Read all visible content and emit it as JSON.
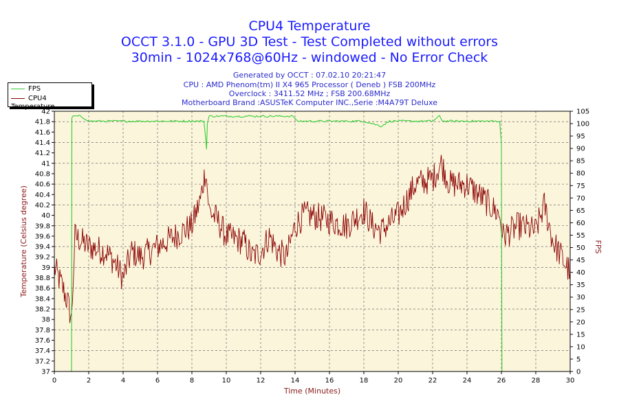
{
  "title": "CPU4 Temperature",
  "subtitle1": "OCCT 3.1.0 - GPU 3D Test - Test Completed without errors",
  "subtitle2": "30min - 1024x768@60Hz - windowed - No Error Check",
  "info": [
    "Generated by OCCT : 07.02.10 20:21:47",
    "CPU : AMD Phenom(tm) II X4 965 Processor ( Deneb ) FSB 200MHz",
    "Overclock : 3411.52 MHz ; FSB 200.68MHz",
    "Motherboard Brand :ASUSTeK Computer INC.,Serie :M4A79T Deluxe"
  ],
  "legend": [
    "FPS",
    "CPU4 Temperature"
  ],
  "colors": {
    "fps": "#33cc33",
    "temperature": "#8b0000",
    "plot_bg": "#fbf5dc",
    "title": "#1a1aff",
    "axis_label": "#8b1a1a"
  },
  "chart_data": {
    "type": "line",
    "xlabel": "Time (Minutes)",
    "ylabel": "Temperature (Celsius degree)",
    "y2label": "FPS",
    "xlim": [
      0,
      30
    ],
    "ylim": [
      37,
      42
    ],
    "y2lim": [
      0,
      105
    ],
    "grid": true,
    "legend_position": "top-left",
    "xticks": [
      "0",
      "2",
      "4",
      "6",
      "8",
      "10",
      "12",
      "14",
      "16",
      "18",
      "20",
      "22",
      "24",
      "26",
      "28",
      "30"
    ],
    "yticks": [
      "37",
      "37.2",
      "37.4",
      "37.6",
      "37.8",
      "38",
      "38.2",
      "38.4",
      "38.6",
      "38.8",
      "39",
      "39.2",
      "39.4",
      "39.6",
      "39.8",
      "40",
      "40.2",
      "40.4",
      "40.6",
      "40.8",
      "41",
      "41.2",
      "41.4",
      "41.6",
      "41.8",
      "42"
    ],
    "y2ticks": [
      "0",
      "5",
      "10",
      "15",
      "20",
      "25",
      "30",
      "35",
      "40",
      "45",
      "50",
      "55",
      "60",
      "65",
      "70",
      "75",
      "80",
      "85",
      "90",
      "95",
      "100",
      "105"
    ],
    "series": [
      {
        "name": "FPS",
        "axis": "right",
        "x": [
          0,
          1.0,
          1.02,
          1.1,
          1.5,
          1.8,
          2.0,
          4,
          6,
          8,
          8.7,
          8.8,
          8.85,
          8.9,
          9.0,
          10,
          12,
          13.9,
          14.1,
          16,
          18,
          18.5,
          19.0,
          19.5,
          20,
          22,
          22.4,
          22.6,
          24,
          25.9,
          26.0,
          26.03,
          30
        ],
        "values": [
          0,
          0,
          102,
          103,
          103,
          102,
          101,
          101,
          101,
          101,
          101,
          94,
          90,
          100,
          103,
          103,
          103,
          103,
          101,
          101,
          101,
          100,
          99,
          101,
          101,
          101,
          103,
          101,
          101,
          101,
          92,
          0,
          0
        ]
      },
      {
        "name": "CPU4 Temperature",
        "axis": "left",
        "x": [
          0,
          0.5,
          0.8,
          1.0,
          1.2,
          2,
          3,
          3.5,
          4.0,
          4.5,
          5,
          6,
          6.5,
          7,
          8,
          8.5,
          8.8,
          9,
          9.5,
          10,
          11,
          11.5,
          12,
          12.5,
          13,
          13.5,
          14,
          14.5,
          15,
          16,
          17,
          18,
          18.5,
          19,
          20,
          20.5,
          21,
          22,
          22.5,
          23,
          24,
          25,
          25.9,
          26.1,
          27,
          28,
          28.5,
          29,
          29.5,
          30
        ],
        "values": [
          39.0,
          38.6,
          38.3,
          38.0,
          39.6,
          39.4,
          39.3,
          39.1,
          38.8,
          39.3,
          39.2,
          39.4,
          39.5,
          39.6,
          39.8,
          40.3,
          40.9,
          40.1,
          39.9,
          39.6,
          39.5,
          39.2,
          39.3,
          39.6,
          39.3,
          39.2,
          39.8,
          40.0,
          40.0,
          39.9,
          39.8,
          40.1,
          39.8,
          39.7,
          40.0,
          40.3,
          40.6,
          40.7,
          41.0,
          40.6,
          40.6,
          40.3,
          40.0,
          39.6,
          39.8,
          39.7,
          40.2,
          39.5,
          39.2,
          38.9
        ]
      }
    ]
  }
}
